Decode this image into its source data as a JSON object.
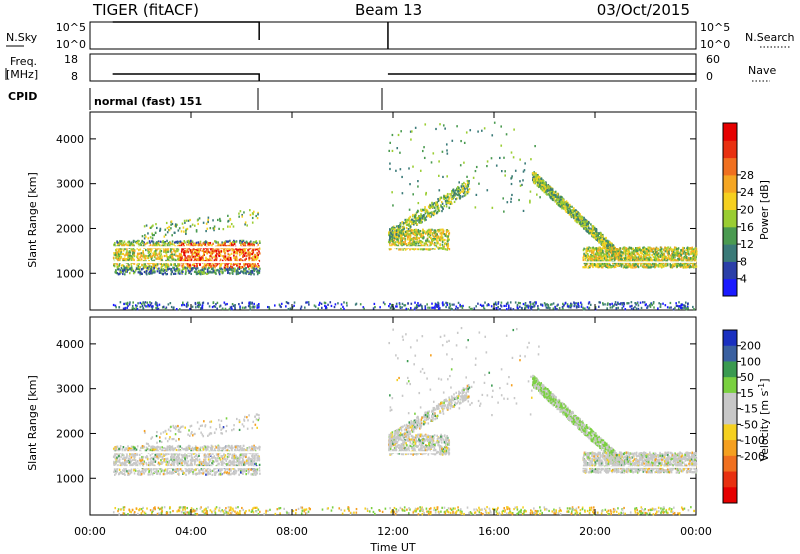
{
  "header": {
    "station": "TIGER (fitACF)",
    "beam": "Beam 13",
    "date": "03/Oct/2015"
  },
  "status_panels": {
    "nsky": {
      "label": "N.Sky",
      "ticks": [
        "10^5",
        "10^0"
      ]
    },
    "nsearch": {
      "label": "N.Search",
      "ticks": [
        "10^5",
        "10^0"
      ]
    },
    "freq": {
      "label_line1": "Freq.",
      "label_line2": "[MHz]",
      "ticks": [
        "18",
        "8"
      ],
      "range": [
        8,
        18
      ]
    },
    "nave": {
      "label": "Nave",
      "ticks": [
        "60",
        "0"
      ],
      "range": [
        0,
        60
      ]
    },
    "cpid": {
      "label": "CPID",
      "text": "normal (fast) 151"
    }
  },
  "x_axis": {
    "label": "Time UT",
    "ticks": [
      "00:00",
      "04:00",
      "08:00",
      "12:00",
      "16:00",
      "20:00",
      "00:00"
    ],
    "range_hours": [
      0,
      24
    ]
  },
  "chart_data": [
    {
      "type": "heatmap",
      "quantity": "power",
      "ylabel": "Slant Range [km]",
      "ylim": [
        180,
        4600
      ],
      "yticks": [
        "1000",
        "2000",
        "3000",
        "4000"
      ],
      "colorbar": {
        "label": "Power [dB]",
        "ticks": [
          "4",
          "8",
          "12",
          "16",
          "20",
          "24",
          "28"
        ],
        "colors": [
          "#1a1aff",
          "#2b3fa8",
          "#3a7a78",
          "#4a9a50",
          "#9acd32",
          "#f5d020",
          "#f5a623",
          "#f07020",
          "#e83010",
          "#e60000"
        ]
      },
      "segments": [
        {
          "t0": 0.9,
          "t1": 6.7,
          "r0": 1000,
          "r1": 1750
        },
        {
          "t0": 11.8,
          "t1": 14.5,
          "r0": 1500,
          "r1": 2100
        },
        {
          "t0": 18.5,
          "t1": 24.0,
          "r0": 1100,
          "r1": 1600
        },
        {
          "t0": 0.9,
          "t1": 24.0,
          "r0": 220,
          "r1": 380
        }
      ]
    },
    {
      "type": "heatmap",
      "quantity": "velocity",
      "ylabel": "Slant Range [km]",
      "ylim": [
        180,
        4600
      ],
      "yticks": [
        "1000",
        "2000",
        "3000",
        "4000"
      ],
      "colorbar": {
        "label": "Velocity [m s",
        "label_sup": "-1",
        "label_close": "]",
        "ticks": [
          "200",
          "100",
          "50",
          "15",
          "-15",
          "-50",
          "-100",
          "-200"
        ],
        "colors": [
          "#1a30c0",
          "#3a60a0",
          "#3a9a50",
          "#7ad040",
          "#c8c8c8",
          "#c8c8c8",
          "#f5d020",
          "#f5a020",
          "#f07020",
          "#e83010",
          "#e60000"
        ]
      }
    }
  ]
}
